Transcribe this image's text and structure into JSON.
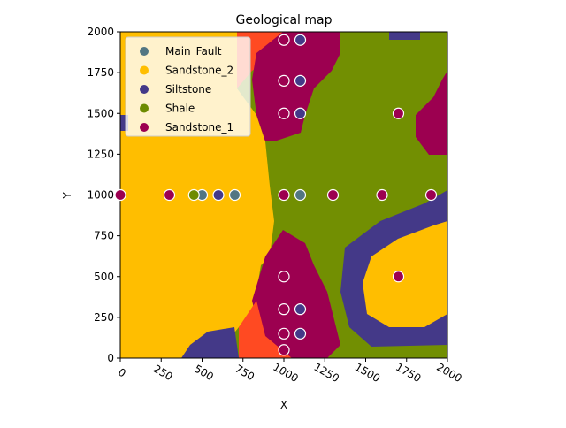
{
  "chart_data": {
    "type": "scatter",
    "title": "Geological map",
    "x_label": "X",
    "y_label": "Y",
    "xlim": [
      0,
      2000
    ],
    "ylim": [
      0,
      2000
    ],
    "xticks": [
      0,
      250,
      500,
      750,
      1000,
      1250,
      1500,
      1750,
      2000
    ],
    "yticks": [
      0,
      250,
      500,
      750,
      1000,
      1250,
      1500,
      1750,
      2000
    ],
    "legend": "upper left",
    "series": [
      {
        "name": "Main_Fault",
        "color": "#527682",
        "x": [
          500,
          700,
          1100
        ],
        "values": [
          1000,
          1000,
          1000
        ]
      },
      {
        "name": "Sandstone_2",
        "color": "#ffbe00",
        "x": [],
        "values": []
      },
      {
        "name": "Siltstone",
        "color": "#443988",
        "x": [
          1100,
          1100,
          1100,
          600,
          1100,
          1100
        ],
        "values": [
          1950,
          1700,
          1500,
          1000,
          300,
          150
        ]
      },
      {
        "name": "Shale",
        "color": "#6d8b00",
        "x": [
          450
        ],
        "values": [
          1000
        ]
      },
      {
        "name": "Sandstone_1",
        "color": "#9c0050",
        "x": [
          0,
          300,
          1000,
          1300,
          1600,
          1900,
          1700,
          1700,
          1000,
          1000,
          1000,
          1000,
          1000,
          1000,
          1000
        ],
        "values": [
          1000,
          1000,
          1000,
          1000,
          1000,
          1000,
          1500,
          500,
          1950,
          1700,
          1500,
          500,
          300,
          150,
          50
        ]
      }
    ]
  }
}
